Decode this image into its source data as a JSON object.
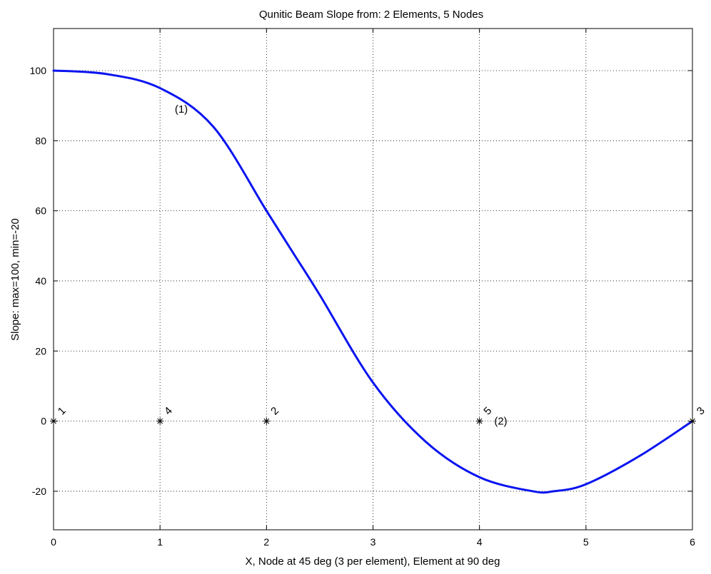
{
  "chart_data": {
    "type": "line",
    "title": "Qunitic Beam Slope from:  2 Elements, 5 Nodes",
    "xlabel": "X, Node at 45 deg (3 per element), Element at 90 deg",
    "ylabel": "Slope: max=100, min=-20",
    "xlim": [
      0,
      6
    ],
    "ylim": [
      -31,
      112
    ],
    "xticks": [
      0,
      1,
      2,
      3,
      4,
      5,
      6
    ],
    "yticks": [
      -20,
      0,
      20,
      40,
      60,
      80,
      100
    ],
    "grid": true,
    "line_color": "#0a14f0",
    "series": [
      {
        "x": [
          0,
          0.5,
          1,
          1.5,
          2,
          2.25,
          2.5,
          3,
          3.5,
          4,
          4.5,
          4.7,
          5,
          5.5,
          6
        ],
        "values": [
          100,
          99,
          95,
          84,
          60,
          48,
          36,
          11,
          -6,
          -16,
          -20,
          -20,
          -18,
          -10,
          0
        ]
      }
    ],
    "nodes": [
      {
        "label": "1",
        "x": 0,
        "y": 0
      },
      {
        "label": "4",
        "x": 1,
        "y": 0
      },
      {
        "label": "2",
        "x": 2,
        "y": 0
      },
      {
        "label": "5",
        "x": 4,
        "y": 0
      },
      {
        "label": "3",
        "x": 6,
        "y": 0
      }
    ],
    "element_labels": [
      {
        "label": "(1)",
        "x": 1.2,
        "y": 89
      },
      {
        "label": "(2)",
        "x": 4.2,
        "y": 0
      }
    ]
  }
}
